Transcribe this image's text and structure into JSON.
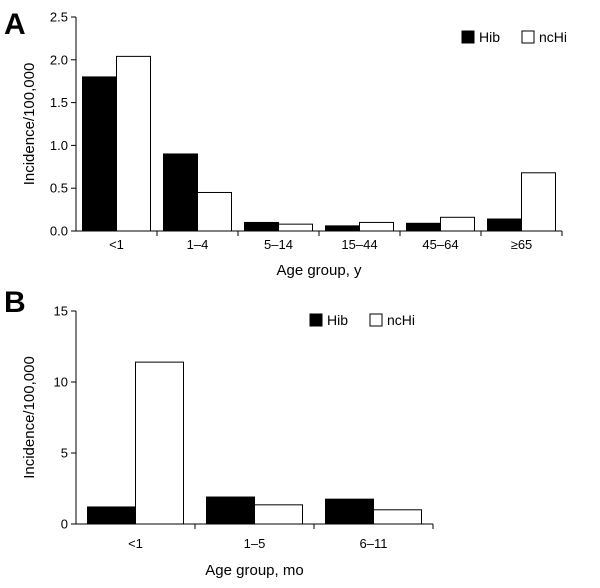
{
  "chart_data": [
    {
      "type": "bar",
      "panel_label": "A",
      "categories": [
        "<1",
        "1–4",
        "5–14",
        "15–44",
        "45–64",
        "≥65"
      ],
      "series": [
        {
          "name": "Hib",
          "values": [
            1.8,
            0.9,
            0.1,
            0.06,
            0.09,
            0.14
          ],
          "color": "#000000"
        },
        {
          "name": "ncHi",
          "values": [
            2.04,
            0.45,
            0.08,
            0.1,
            0.16,
            0.68
          ],
          "color": "#ffffff"
        }
      ],
      "xlabel": "Age group, y",
      "ylabel": "Incidence/100,000",
      "ylim": [
        0,
        2.5
      ],
      "yticks": [
        "0.0",
        "0.5",
        "1.0",
        "1.5",
        "2.0",
        "2.5"
      ],
      "legend_position": "top-right",
      "grid": false
    },
    {
      "type": "bar",
      "panel_label": "B",
      "categories": [
        "<1",
        "1–5",
        "6–11"
      ],
      "series": [
        {
          "name": "Hib",
          "values": [
            1.2,
            1.9,
            1.75
          ],
          "color": "#000000"
        },
        {
          "name": "ncHi",
          "values": [
            11.4,
            1.35,
            1.0
          ],
          "color": "#ffffff"
        }
      ],
      "xlabel": "Age group, mo",
      "ylabel": "Incidence/100,000",
      "ylim": [
        0,
        15
      ],
      "yticks": [
        "0",
        "5",
        "10",
        "15"
      ],
      "legend_position": "top-right",
      "grid": false
    }
  ]
}
